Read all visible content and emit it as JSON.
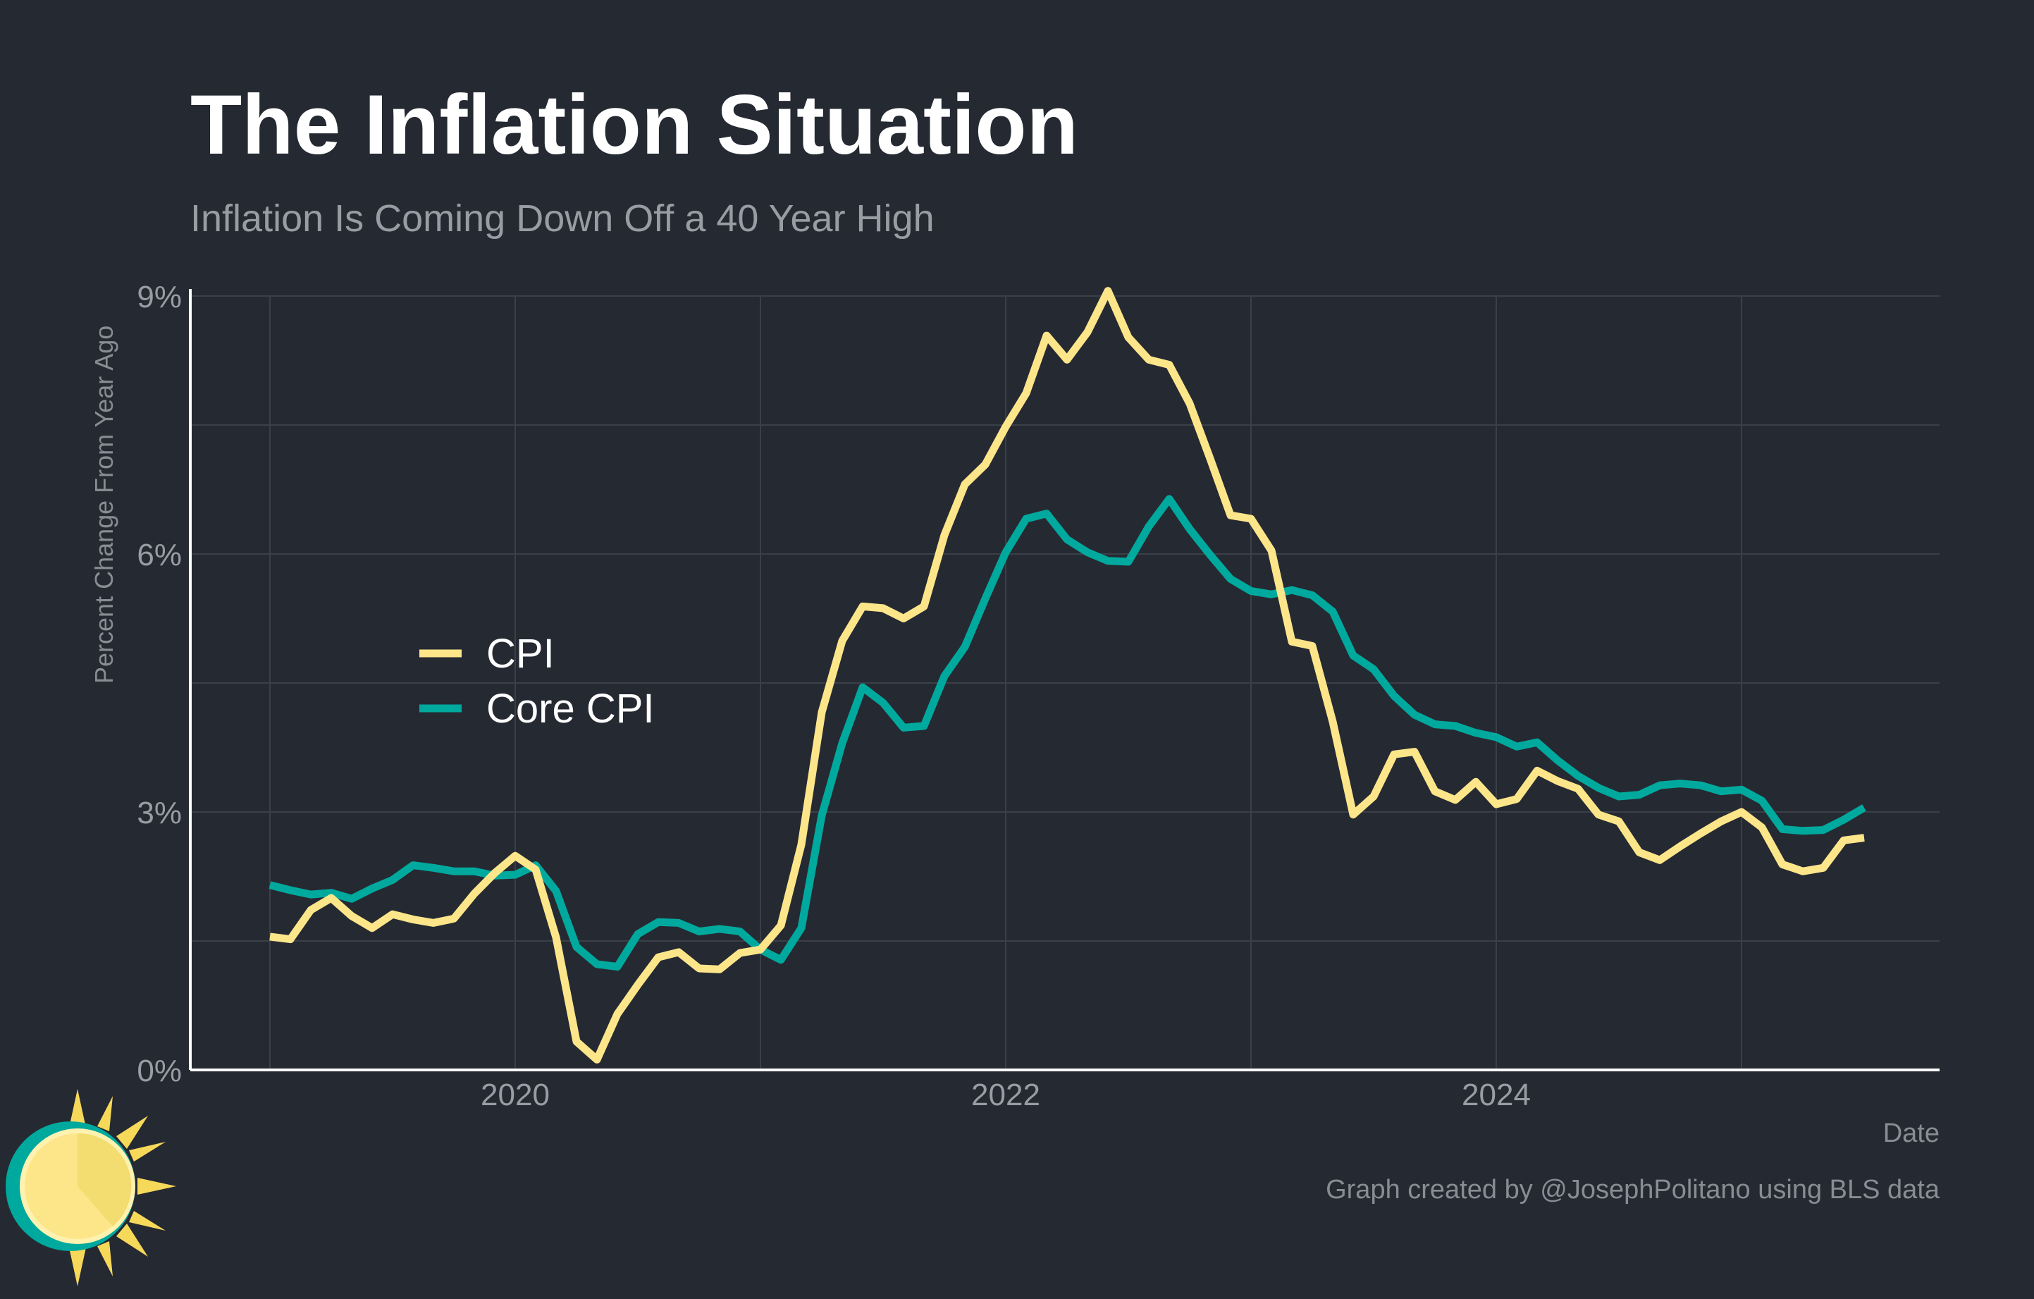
{
  "chart_data": {
    "type": "line",
    "title": "The Inflation Situation",
    "subtitle": "Inflation Is Coming Down Off a 40 Year High",
    "xlabel": "Date",
    "ylabel": "Percent Change From Year Ago",
    "caption": "Graph created by @JosephPolitano using BLS data",
    "x_start": "2019-01",
    "frequency": "monthly",
    "xticks": [
      "2020",
      "2022",
      "2024"
    ],
    "yticks": [
      "0%",
      "3%",
      "6%",
      "9%"
    ],
    "ylim": [
      0,
      9
    ],
    "grid": true,
    "legend_position": "center-left",
    "series": [
      {
        "name": "CPI",
        "color": "#fde68a",
        "values": [
          1.55,
          1.52,
          1.86,
          2.0,
          1.79,
          1.65,
          1.81,
          1.75,
          1.71,
          1.76,
          2.05,
          2.29,
          2.49,
          2.33,
          1.54,
          0.33,
          0.12,
          0.65,
          0.99,
          1.31,
          1.37,
          1.18,
          1.17,
          1.36,
          1.4,
          1.68,
          2.62,
          4.16,
          4.99,
          5.39,
          5.37,
          5.25,
          5.39,
          6.22,
          6.81,
          7.04,
          7.48,
          7.87,
          8.54,
          8.26,
          8.58,
          9.06,
          8.52,
          8.26,
          8.2,
          7.75,
          7.11,
          6.45,
          6.41,
          6.04,
          4.98,
          4.93,
          4.05,
          2.97,
          3.18,
          3.67,
          3.7,
          3.24,
          3.14,
          3.35,
          3.09,
          3.15,
          3.48,
          3.36,
          3.27,
          2.97,
          2.89,
          2.53,
          2.44,
          2.6,
          2.75,
          2.89,
          3.0,
          2.82,
          2.39,
          2.31,
          2.35,
          2.67,
          2.7
        ]
      },
      {
        "name": "Core CPI",
        "color": "#00a99d",
        "values": [
          2.15,
          2.09,
          2.04,
          2.06,
          1.99,
          2.11,
          2.21,
          2.38,
          2.35,
          2.31,
          2.31,
          2.26,
          2.27,
          2.38,
          2.08,
          1.43,
          1.23,
          1.2,
          1.58,
          1.72,
          1.71,
          1.61,
          1.64,
          1.61,
          1.4,
          1.28,
          1.65,
          2.96,
          3.8,
          4.45,
          4.27,
          3.98,
          4.0,
          4.58,
          4.92,
          5.48,
          6.02,
          6.41,
          6.47,
          6.17,
          6.02,
          5.92,
          5.91,
          6.32,
          6.64,
          6.29,
          5.99,
          5.71,
          5.57,
          5.53,
          5.58,
          5.52,
          5.33,
          4.82,
          4.66,
          4.35,
          4.13,
          4.02,
          4.0,
          3.92,
          3.87,
          3.76,
          3.81,
          3.6,
          3.42,
          3.28,
          3.18,
          3.2,
          3.31,
          3.33,
          3.31,
          3.24,
          3.26,
          3.13,
          2.8,
          2.78,
          2.79,
          2.91,
          3.05
        ]
      }
    ]
  }
}
